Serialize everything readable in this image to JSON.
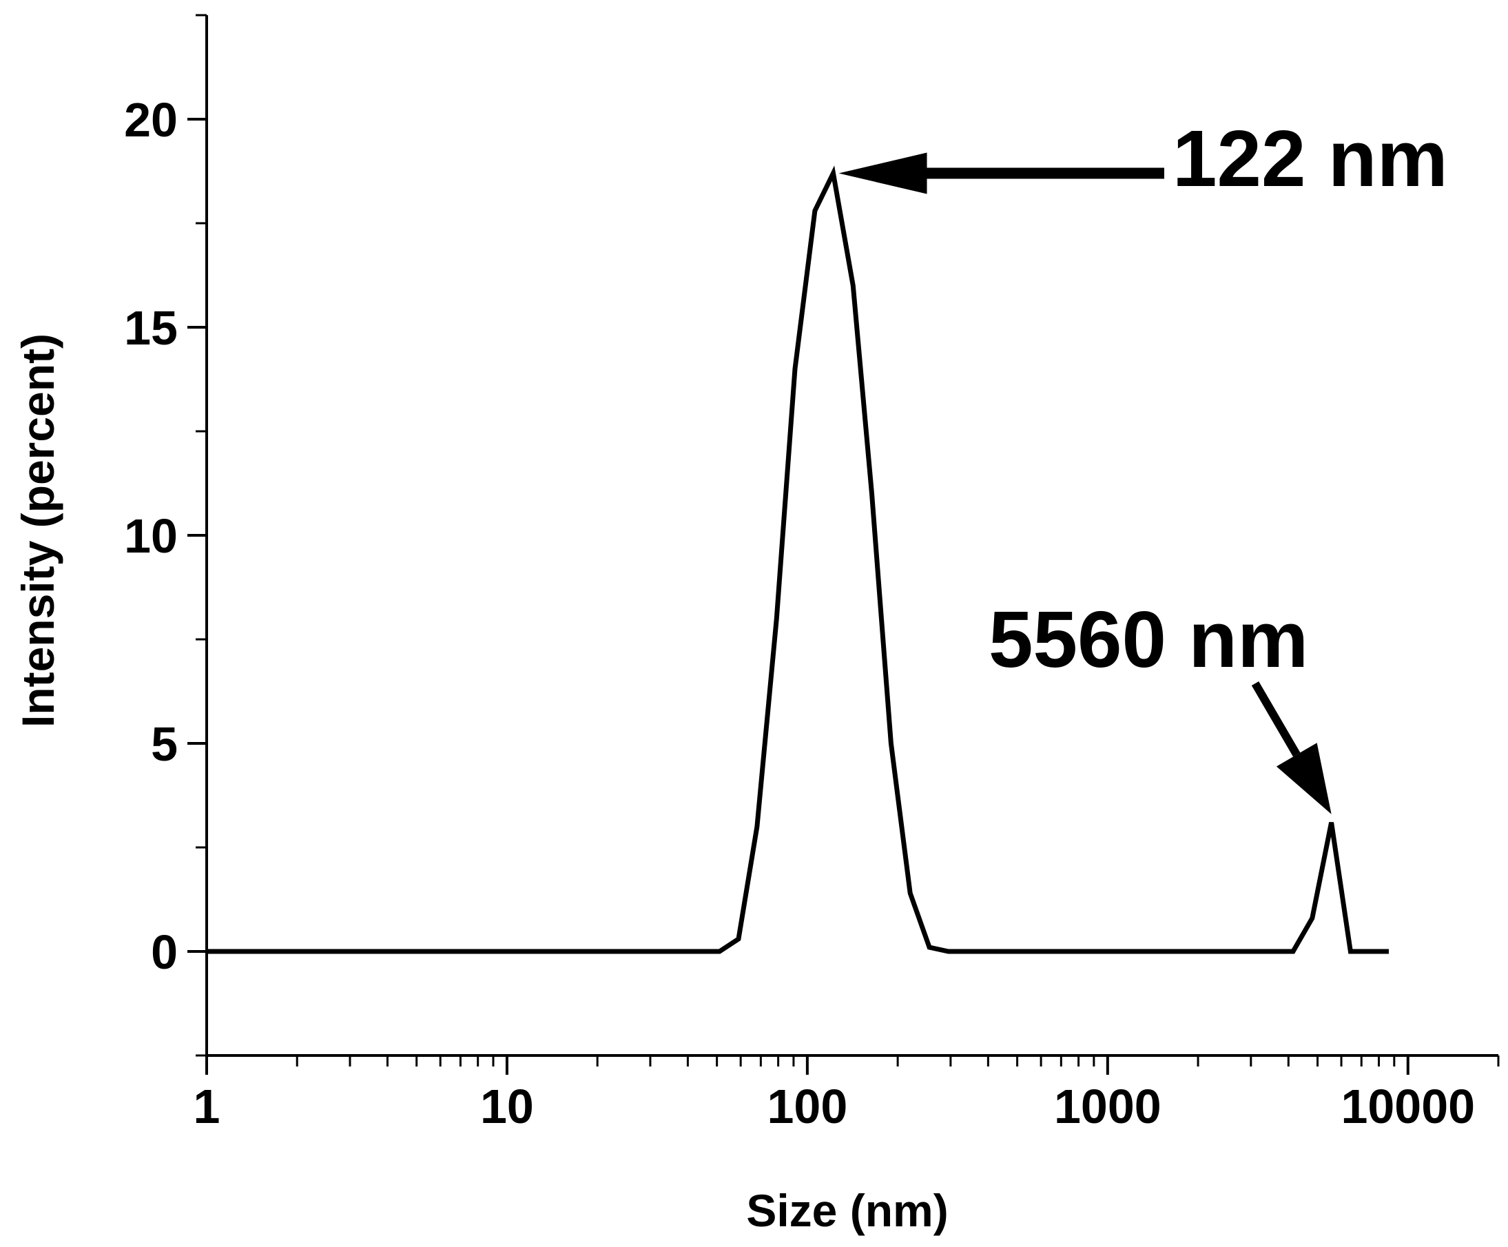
{
  "chart_data": {
    "type": "line",
    "title": "",
    "xlabel": "Size (nm)",
    "ylabel": "Intensity (percent)",
    "xscale": "log",
    "xlim": [
      1,
      20000
    ],
    "ylim": [
      -2.5,
      22.5
    ],
    "x_ticks": [
      1,
      10,
      100,
      1000,
      10000
    ],
    "x_tick_labels": [
      "1",
      "10",
      "100",
      "1000",
      "10000"
    ],
    "y_ticks": [
      0,
      5,
      10,
      15,
      20
    ],
    "y_tick_labels": [
      "0",
      "5",
      "10",
      "15",
      "20"
    ],
    "grid": false,
    "legend": "none",
    "line_color": "#000000",
    "series": [
      {
        "x": [
          1,
          51,
          59,
          68,
          79,
          91,
          106,
          122,
          142,
          164,
          190,
          220,
          255,
          295,
          342,
          396,
          459,
          531,
          615,
          712,
          825,
          955,
          1106,
          1281,
          1484,
          1718,
          1990,
          2305,
          2669,
          3091,
          3580,
          4145,
          4801,
          5560,
          6439,
          7456,
          8636
        ],
        "y": [
          0,
          0,
          0.3,
          3.0,
          8.0,
          14.0,
          17.8,
          18.7,
          16.0,
          11.0,
          5.0,
          1.4,
          0.1,
          0,
          0,
          0,
          0,
          0,
          0,
          0,
          0,
          0,
          0,
          0,
          0,
          0,
          0,
          0,
          0,
          0,
          0,
          0,
          0.8,
          3.1,
          0,
          0,
          0
        ]
      }
    ],
    "annotations": [
      {
        "text": "122 nm",
        "x": 122,
        "y": 18.7
      },
      {
        "text": "5560 nm",
        "x": 5560,
        "y": 3.1
      }
    ]
  }
}
